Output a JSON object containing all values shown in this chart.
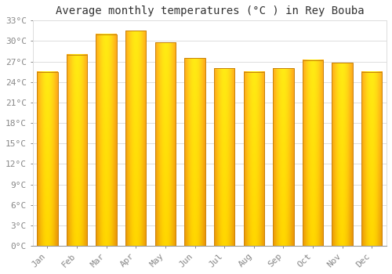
{
  "title": "Average monthly temperatures (°C ) in Rey Bouba",
  "months": [
    "Jan",
    "Feb",
    "Mar",
    "Apr",
    "May",
    "Jun",
    "Jul",
    "Aug",
    "Sep",
    "Oct",
    "Nov",
    "Dec"
  ],
  "temperatures": [
    25.5,
    28.0,
    31.0,
    31.5,
    29.8,
    27.5,
    26.0,
    25.5,
    26.0,
    27.2,
    26.8,
    25.5
  ],
  "bar_color_center": "#FFD700",
  "bar_color_edge": "#E8920A",
  "bar_border_color": "#C8820A",
  "ylim": [
    0,
    33
  ],
  "yticks": [
    0,
    3,
    6,
    9,
    12,
    15,
    18,
    21,
    24,
    27,
    30,
    33
  ],
  "ytick_labels": [
    "0°C",
    "3°C",
    "6°C",
    "9°C",
    "12°C",
    "15°C",
    "18°C",
    "21°C",
    "24°C",
    "27°C",
    "30°C",
    "33°C"
  ],
  "background_color": "#ffffff",
  "grid_color": "#dddddd",
  "title_fontsize": 10,
  "tick_fontsize": 8,
  "tick_color": "#888888",
  "font_family": "monospace",
  "bar_width": 0.7
}
